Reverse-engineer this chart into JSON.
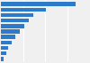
{
  "values": [
    13.5,
    8.2,
    5.8,
    5.0,
    4.3,
    3.5,
    2.6,
    2.0,
    1.3,
    0.9,
    0.5
  ],
  "bar_color": "#2b7bca",
  "background_color": "#f0f0f0",
  "grid_color": "#ffffff",
  "xlim": [
    0,
    16.0
  ],
  "bar_height": 0.72
}
